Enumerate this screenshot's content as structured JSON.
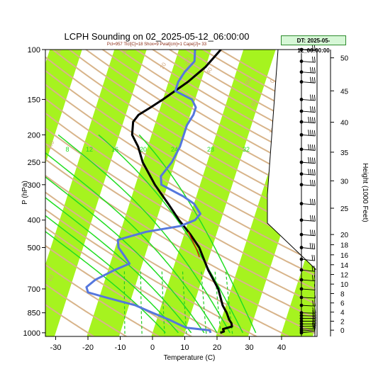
{
  "title": "LCPH Sounding on 02_2025-05-12_06:00:00",
  "subtitle": "Pcl=957 Tlcl[C]=18 Shox=9 Pwat[cm]=1 Cape[J]= 33",
  "datetime_box": "DT: 2025-05-12_00:00:00",
  "colors": {
    "isotherm_band": "#a6f31f",
    "dry_adiabat": "#d8b48a",
    "moist_adiabat": "#22dd22",
    "mixing_ratio": "#22cc22",
    "temperature": "#000000",
    "dewpoint": "#5577dd",
    "parcel": "#cc2200",
    "label_tan": "#d2a87e"
  },
  "chart_data": {
    "type": "line",
    "title": "LCPH Sounding on 02_2025-05-12_06:00:00",
    "xlabel": "Temperature (C)",
    "ylabel": "P (hPa)",
    "y2label": "Height (1000 Feet)",
    "xlim": [
      -33,
      47
    ],
    "ylim": [
      1030,
      100
    ],
    "y_scale": "log",
    "x_ticks": [
      -30,
      -20,
      -10,
      0,
      10,
      20,
      30,
      40
    ],
    "y_ticks": [
      100,
      150,
      200,
      250,
      300,
      400,
      500,
      700,
      850,
      1000
    ],
    "height_ticks": [
      0,
      2,
      4,
      6,
      8,
      10,
      12,
      14,
      16,
      18,
      20,
      25,
      30,
      35,
      40,
      45,
      50
    ],
    "mixing_ratio_labels": [
      "8",
      "12",
      "16",
      "20",
      "24",
      "28",
      "32"
    ],
    "dry_adiabat_labels": [
      "-80",
      "-60",
      "-40",
      "-20",
      "0",
      "20",
      "30",
      "40",
      "60",
      "80",
      "100",
      "120",
      "140",
      "160",
      "-10"
    ],
    "series": [
      {
        "name": "Temperature",
        "points": [
          [
            1000,
            21
          ],
          [
            990,
            22
          ],
          [
            970,
            21.5
          ],
          [
            950,
            24
          ],
          [
            925,
            23.5
          ],
          [
            900,
            22.5
          ],
          [
            850,
            21
          ],
          [
            800,
            19
          ],
          [
            700,
            16
          ],
          [
            600,
            11
          ],
          [
            500,
            6
          ],
          [
            450,
            2
          ],
          [
            400,
            -3
          ],
          [
            350,
            -8
          ],
          [
            300,
            -14
          ],
          [
            250,
            -20
          ],
          [
            220,
            -23
          ],
          [
            200,
            -26
          ],
          [
            180,
            -27
          ],
          [
            170,
            -26
          ],
          [
            160,
            -23
          ],
          [
            150,
            -20
          ],
          [
            130,
            -14
          ],
          [
            115,
            -10
          ],
          [
            100,
            -7
          ]
        ]
      },
      {
        "name": "Dewpoint",
        "points": [
          [
            1000,
            18
          ],
          [
            980,
            17.5
          ],
          [
            960,
            10
          ],
          [
            930,
            7
          ],
          [
            900,
            4
          ],
          [
            850,
            -2
          ],
          [
            800,
            -8
          ],
          [
            750,
            -18
          ],
          [
            720,
            -24
          ],
          [
            690,
            -25
          ],
          [
            650,
            -23
          ],
          [
            600,
            -18
          ],
          [
            570,
            -14
          ],
          [
            540,
            -16
          ],
          [
            500,
            -19
          ],
          [
            470,
            -20
          ],
          [
            440,
            -12
          ],
          [
            420,
            -2
          ],
          [
            400,
            2
          ],
          [
            380,
            3
          ],
          [
            350,
            0
          ],
          [
            330,
            -4
          ],
          [
            300,
            -12
          ],
          [
            280,
            -13
          ],
          [
            250,
            -11
          ],
          [
            220,
            -10
          ],
          [
            200,
            -10
          ],
          [
            185,
            -10
          ],
          [
            170,
            -9
          ],
          [
            160,
            -9
          ],
          [
            150,
            -11
          ],
          [
            140,
            -17
          ],
          [
            130,
            -17
          ],
          [
            120,
            -16
          ],
          [
            110,
            -14
          ],
          [
            100,
            -15
          ]
        ]
      },
      {
        "name": "Parcel",
        "points": [
          [
            540,
            7
          ],
          [
            510,
            5.5
          ],
          [
            470,
            3
          ],
          [
            440,
            1
          ]
        ]
      }
    ],
    "wind_barbs": [
      {
        "p": 1000,
        "s": 10,
        "d": 250
      },
      {
        "p": 985,
        "s": 10,
        "d": 255
      },
      {
        "p": 970,
        "s": 15,
        "d": 260
      },
      {
        "p": 950,
        "s": 15,
        "d": 265
      },
      {
        "p": 930,
        "s": 15,
        "d": 270
      },
      {
        "p": 910,
        "s": 15,
        "d": 270
      },
      {
        "p": 890,
        "s": 15,
        "d": 270
      },
      {
        "p": 870,
        "s": 20,
        "d": 275
      },
      {
        "p": 850,
        "s": 20,
        "d": 275
      },
      {
        "p": 800,
        "s": 15,
        "d": 280
      },
      {
        "p": 750,
        "s": 10,
        "d": 280
      },
      {
        "p": 700,
        "s": 10,
        "d": 285
      },
      {
        "p": 650,
        "s": 15,
        "d": 285
      },
      {
        "p": 600,
        "s": 20,
        "d": 290
      },
      {
        "p": 550,
        "s": 20,
        "d": 290
      },
      {
        "p": 500,
        "s": 25,
        "d": 290
      },
      {
        "p": 450,
        "s": 25,
        "d": 285
      },
      {
        "p": 400,
        "s": 25,
        "d": 285
      },
      {
        "p": 350,
        "s": 30,
        "d": 285
      },
      {
        "p": 300,
        "s": 30,
        "d": 285
      },
      {
        "p": 275,
        "s": 35,
        "d": 285
      },
      {
        "p": 250,
        "s": 35,
        "d": 285
      },
      {
        "p": 225,
        "s": 40,
        "d": 285
      },
      {
        "p": 200,
        "s": 40,
        "d": 285
      },
      {
        "p": 180,
        "s": 35,
        "d": 285
      },
      {
        "p": 165,
        "s": 30,
        "d": 285
      },
      {
        "p": 150,
        "s": 30,
        "d": 285
      },
      {
        "p": 130,
        "s": 25,
        "d": 285
      },
      {
        "p": 120,
        "s": 25,
        "d": 285
      },
      {
        "p": 110,
        "s": 20,
        "d": 285
      },
      {
        "p": 100,
        "s": 20,
        "d": 285
      }
    ]
  }
}
